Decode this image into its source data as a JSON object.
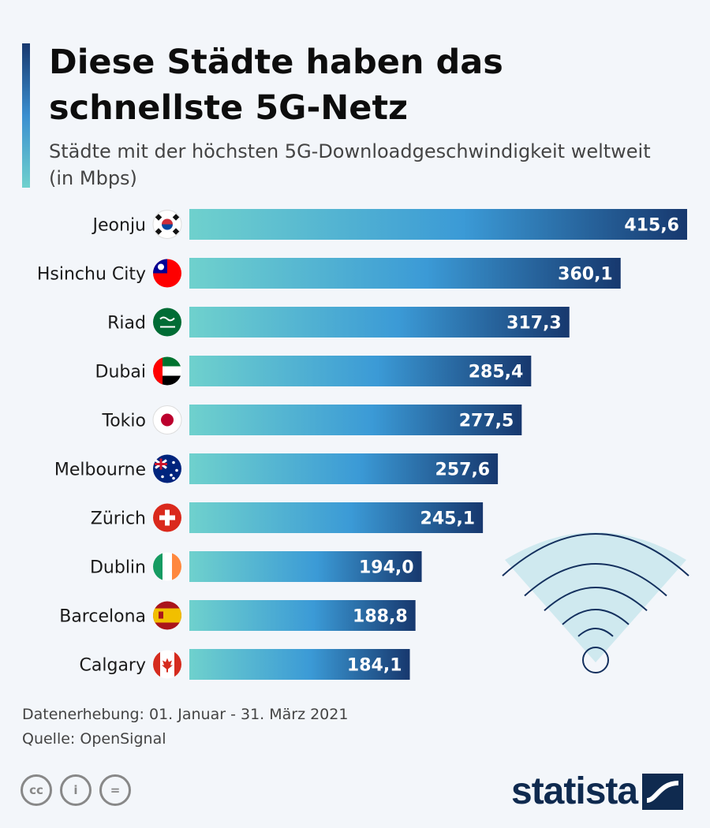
{
  "header": {
    "title": "Diese Städte haben das schnellste 5G-Netz",
    "subtitle": "Städte mit der höchsten 5G-Downloadgeschwindigkeit weltweit (in Mbps)"
  },
  "chart_data": {
    "type": "bar",
    "orientation": "horizontal",
    "categories": [
      "Jeonju",
      "Hsinchu City",
      "Riad",
      "Dubai",
      "Tokio",
      "Melbourne",
      "Zürich",
      "Dublin",
      "Barcelona",
      "Calgary"
    ],
    "values": [
      415.6,
      360.1,
      317.3,
      285.4,
      277.5,
      257.6,
      245.1,
      194.0,
      188.8,
      184.1
    ],
    "value_labels": [
      "415,6",
      "360,1",
      "317,3",
      "285,4",
      "277,5",
      "257,6",
      "245,1",
      "194,0",
      "188,8",
      "184,1"
    ],
    "flags": [
      "south-korea-flag-icon",
      "taiwan-flag-icon",
      "saudi-arabia-flag-icon",
      "uae-flag-icon",
      "japan-flag-icon",
      "australia-flag-icon",
      "switzerland-flag-icon",
      "ireland-flag-icon",
      "spain-flag-icon",
      "canada-flag-icon"
    ],
    "xlim": [
      0,
      415.6
    ],
    "grid": false,
    "bar_gradient": [
      "#6fd1cd",
      "#3b9ad6",
      "#17386e"
    ]
  },
  "decoration": {
    "icon": "wifi-signal-icon",
    "color": "#14305e",
    "fan_color": "#cfe9ef"
  },
  "footer": {
    "survey_period": "Datenerhebung: 01. Januar - 31. März 2021",
    "source": "Quelle: OpenSignal",
    "license_icons": [
      "cc-icon",
      "by-icon",
      "nd-icon"
    ],
    "license_glyphs": [
      "cc",
      "i",
      "="
    ],
    "brand": "statista"
  }
}
